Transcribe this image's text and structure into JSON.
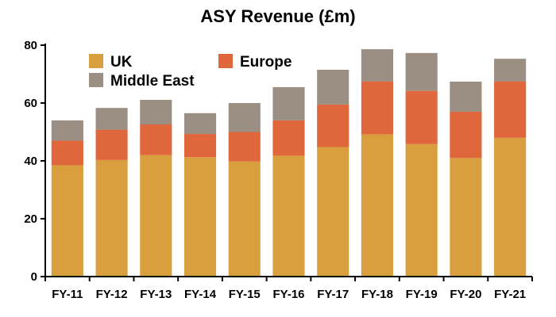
{
  "chart_data": {
    "type": "bar",
    "stacked": true,
    "title": "ASY Revenue (£m)",
    "xlabel": "",
    "ylabel": "",
    "categories": [
      "FY-11",
      "FY-12",
      "FY-13",
      "FY-14",
      "FY-15",
      "FY-16",
      "FY-17",
      "FY-18",
      "FY-19",
      "FY-20",
      "FY-21"
    ],
    "ylim": [
      0,
      80
    ],
    "yticks": [
      0,
      20,
      40,
      60,
      80
    ],
    "grid": false,
    "legend_position": "top-left",
    "series": [
      {
        "name": "UK",
        "color": "#D99E3E",
        "values": [
          38.5,
          40.3,
          42.0,
          41.3,
          39.8,
          41.8,
          44.8,
          49.2,
          45.8,
          41.0,
          48.0
        ]
      },
      {
        "name": "Europe",
        "color": "#E0663B",
        "values": [
          8.5,
          10.5,
          10.6,
          8.0,
          10.2,
          12.2,
          14.7,
          18.3,
          18.4,
          16.0,
          19.5
        ]
      },
      {
        "name": "Middle East",
        "color": "#9B8E83",
        "values": [
          7.0,
          7.5,
          8.5,
          7.2,
          10.0,
          11.5,
          12.0,
          11.1,
          13.1,
          10.4,
          7.8
        ]
      }
    ]
  }
}
